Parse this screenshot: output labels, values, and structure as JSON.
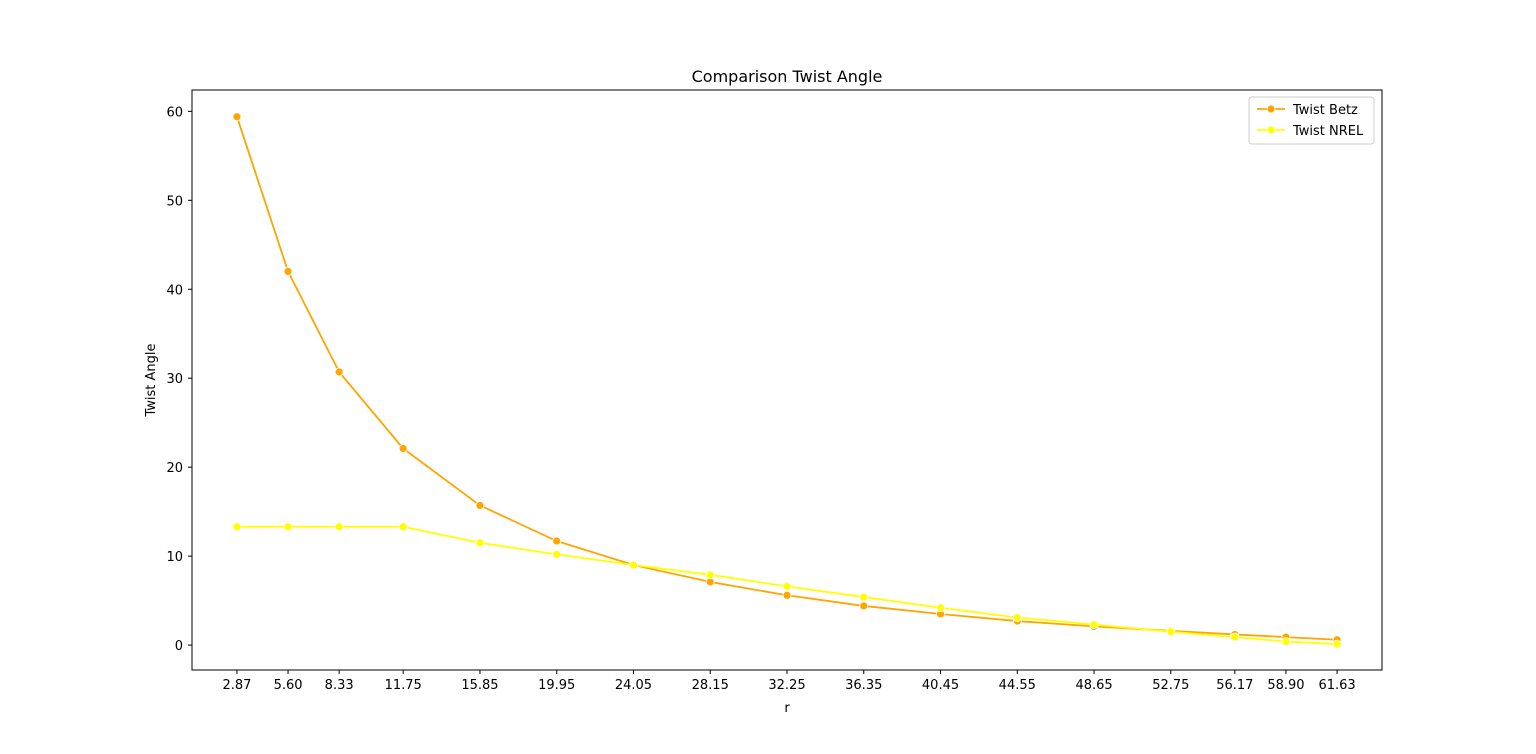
{
  "chart_data": {
    "type": "line",
    "title": "Comparison Twist Angle",
    "xlabel": "r",
    "ylabel": "Twist Angle",
    "x": [
      2.87,
      5.6,
      8.33,
      11.75,
      15.85,
      19.95,
      24.05,
      28.15,
      32.25,
      36.35,
      40.45,
      44.55,
      48.65,
      52.75,
      56.17,
      58.9,
      61.63
    ],
    "x_tick_labels": [
      "2.87",
      "5.60",
      "8.33",
      "11.75",
      "15.85",
      "19.95",
      "24.05",
      "28.15",
      "32.25",
      "36.35",
      "40.45",
      "44.55",
      "48.65",
      "52.75",
      "56.17",
      "58.90",
      "61.63"
    ],
    "xlim": [
      0.47,
      64.03
    ],
    "ylim": [
      -2.8,
      62.4
    ],
    "y_ticks": [
      0,
      10,
      20,
      30,
      40,
      50,
      60
    ],
    "grid": false,
    "legend": "top-right",
    "series": [
      {
        "name": "Twist Betz",
        "color": "#ffa500",
        "marker": "circle",
        "values": [
          59.4,
          42.0,
          30.7,
          22.1,
          15.7,
          11.7,
          9.0,
          7.1,
          5.6,
          4.4,
          3.5,
          2.7,
          2.1,
          1.6,
          1.2,
          0.9,
          0.6
        ]
      },
      {
        "name": "Twist NREL",
        "color": "#ffff00",
        "marker": "circle",
        "values": [
          13.3,
          13.3,
          13.3,
          13.3,
          11.5,
          10.2,
          9.0,
          7.9,
          6.6,
          5.4,
          4.2,
          3.1,
          2.3,
          1.5,
          0.9,
          0.4,
          0.1
        ]
      }
    ]
  }
}
